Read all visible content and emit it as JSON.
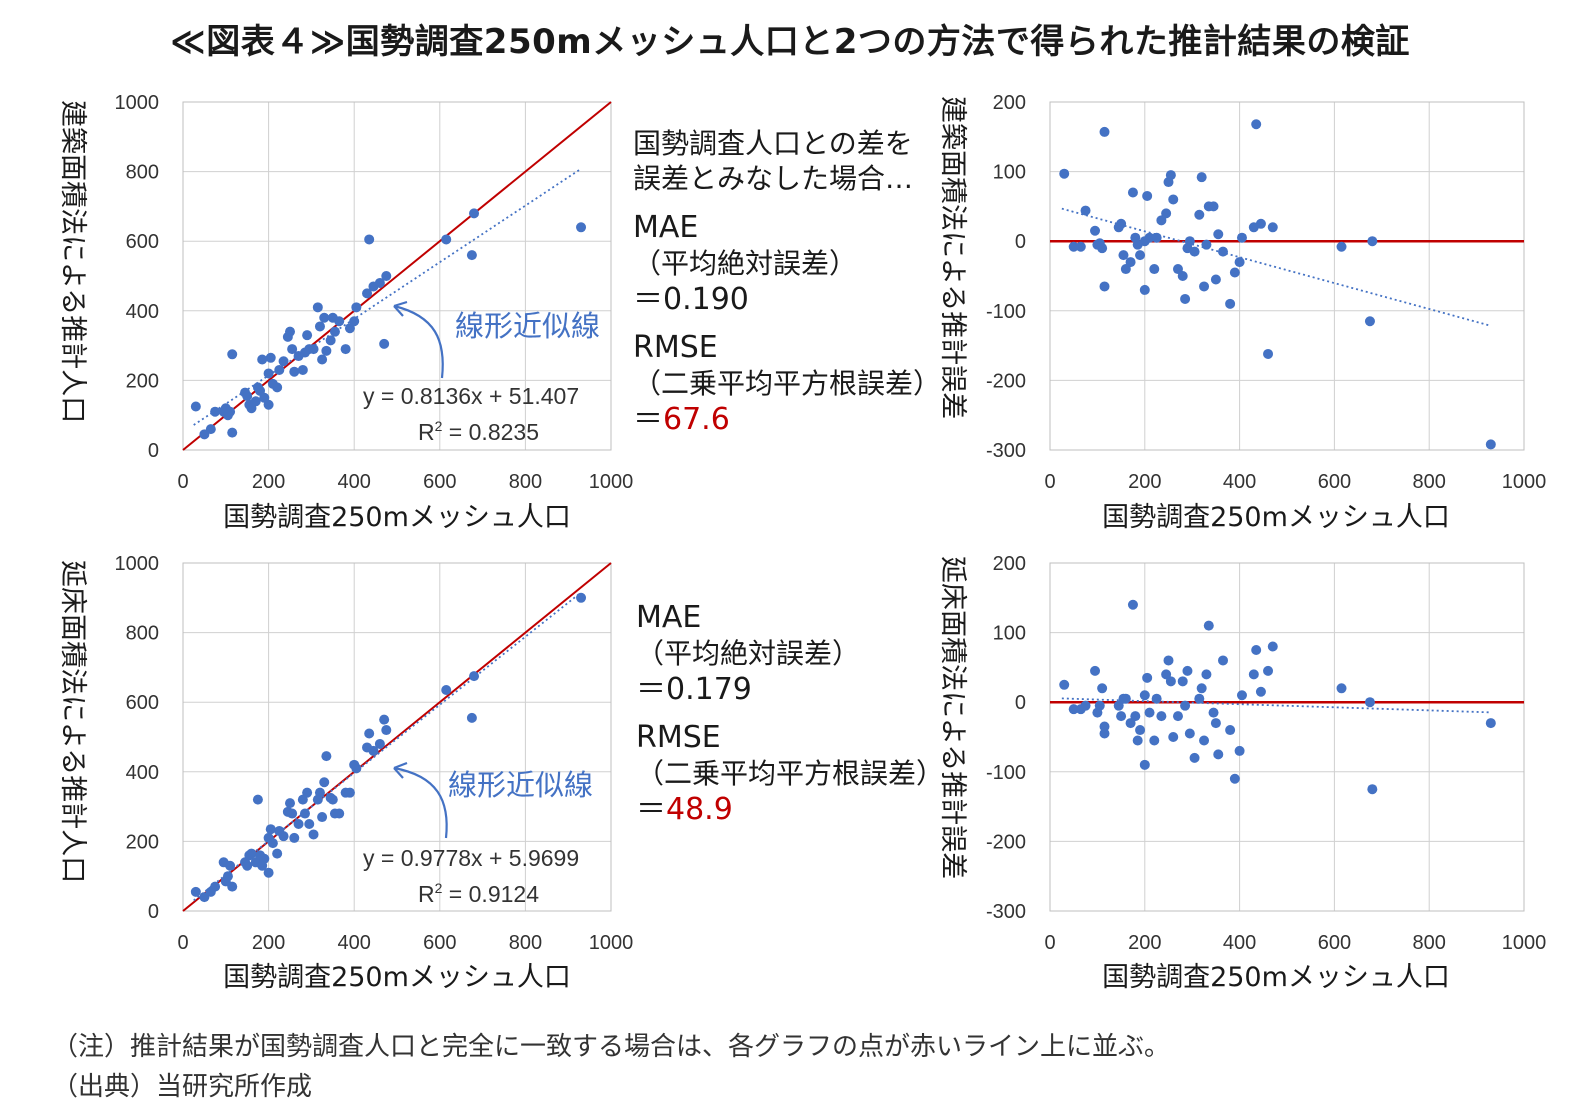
{
  "title": "≪図表４≫国勢調査250mメッシュ人口と2つの方法で得られた推計結果の検証",
  "colors": {
    "point": "#4472c4",
    "reference_line": "#c00000",
    "trendline": "#4472c4",
    "grid": "#d0d0d0",
    "highlight_text": "#c00000"
  },
  "stats": [
    {
      "intro": "国勢調査人口との差を\n誤差とみなした場合…",
      "mae_label": "MAE",
      "mae_desc": "（平均絶対誤差）",
      "mae_value": "＝0.190",
      "rmse_label": "RMSE",
      "rmse_desc": "（二乗平均平方根誤差）",
      "rmse_eq": "＝",
      "rmse_value": "67.6"
    },
    {
      "intro": "",
      "mae_label": "MAE",
      "mae_desc": "（平均絶対誤差）",
      "mae_value": "＝0.179",
      "rmse_label": "RMSE",
      "rmse_desc": "（二乗平均平方根誤差）",
      "rmse_eq": "＝",
      "rmse_value": "48.9"
    }
  ],
  "notes": [
    "（注）推計結果が国勢調査人口と完全に一致する場合は、各グラフの点が赤いライン上に並ぶ。",
    "（出典）当研究所作成"
  ],
  "chart_data": [
    {
      "type": "scatter",
      "xlabel": "国勢調査250mメッシュ人口",
      "ylabel": "建築面積法による推計人口",
      "xlim": [
        0,
        1000
      ],
      "ylim": [
        0,
        1000
      ],
      "xticks": [
        0,
        200,
        400,
        600,
        800,
        1000
      ],
      "yticks": [
        0,
        200,
        400,
        600,
        800,
        1000
      ],
      "grid": true,
      "reference_line": {
        "type": "y=x",
        "color": "#c00000"
      },
      "trendline": {
        "slope": 0.8136,
        "intercept": 51.407,
        "x_range": [
          25,
          930
        ],
        "style": "dotted"
      },
      "callout_label": "線形近似線",
      "equation": "y = 0.8136x + 51.407",
      "r2_prefix": "R",
      "r2_sup": "2",
      "r2_value": " = 0.8235",
      "points": [
        [
          30,
          125
        ],
        [
          50,
          45
        ],
        [
          65,
          60
        ],
        [
          75,
          110
        ],
        [
          95,
          110
        ],
        [
          100,
          120
        ],
        [
          105,
          100
        ],
        [
          110,
          110
        ],
        [
          115,
          50
        ],
        [
          115,
          275
        ],
        [
          145,
          165
        ],
        [
          150,
          155
        ],
        [
          155,
          130
        ],
        [
          160,
          120
        ],
        [
          170,
          140
        ],
        [
          175,
          180
        ],
        [
          180,
          170
        ],
        [
          185,
          260
        ],
        [
          190,
          150
        ],
        [
          200,
          220
        ],
        [
          200,
          130
        ],
        [
          205,
          265
        ],
        [
          210,
          190
        ],
        [
          220,
          180
        ],
        [
          225,
          230
        ],
        [
          235,
          255
        ],
        [
          245,
          325
        ],
        [
          250,
          340
        ],
        [
          255,
          290
        ],
        [
          260,
          225
        ],
        [
          270,
          270
        ],
        [
          280,
          230
        ],
        [
          285,
          280
        ],
        [
          290,
          330
        ],
        [
          295,
          290
        ],
        [
          305,
          290
        ],
        [
          315,
          410
        ],
        [
          320,
          355
        ],
        [
          325,
          260
        ],
        [
          330,
          380
        ],
        [
          335,
          285
        ],
        [
          345,
          315
        ],
        [
          350,
          380
        ],
        [
          355,
          340
        ],
        [
          365,
          370
        ],
        [
          380,
          290
        ],
        [
          390,
          350
        ],
        [
          400,
          370
        ],
        [
          405,
          410
        ],
        [
          430,
          450
        ],
        [
          435,
          605
        ],
        [
          445,
          470
        ],
        [
          460,
          480
        ],
        [
          470,
          305
        ],
        [
          475,
          500
        ],
        [
          615,
          605
        ],
        [
          675,
          560
        ],
        [
          680,
          680
        ],
        [
          930,
          640
        ]
      ]
    },
    {
      "type": "scatter",
      "xlabel": "国勢調査250mメッシュ人口",
      "ylabel": "建築面積法による推計誤差",
      "xlim": [
        0,
        1000
      ],
      "ylim": [
        -300,
        200
      ],
      "xticks": [
        0,
        200,
        400,
        600,
        800,
        1000
      ],
      "yticks": [
        -300,
        -200,
        -100,
        0,
        100,
        200
      ],
      "grid": true,
      "reference_line": {
        "type": "y=0",
        "color": "#c00000"
      },
      "trendline": {
        "slope": -0.186,
        "intercept": 51.4,
        "x_range": [
          25,
          930
        ],
        "style": "dotted"
      },
      "points": [
        [
          30,
          97
        ],
        [
          50,
          -8
        ],
        [
          65,
          -8
        ],
        [
          75,
          44
        ],
        [
          95,
          15
        ],
        [
          100,
          -5
        ],
        [
          105,
          -3
        ],
        [
          110,
          -10
        ],
        [
          115,
          -65
        ],
        [
          115,
          157
        ],
        [
          145,
          20
        ],
        [
          150,
          25
        ],
        [
          155,
          -20
        ],
        [
          160,
          -40
        ],
        [
          170,
          -30
        ],
        [
          175,
          70
        ],
        [
          180,
          5
        ],
        [
          185,
          -5
        ],
        [
          190,
          -20
        ],
        [
          200,
          0
        ],
        [
          200,
          -70
        ],
        [
          205,
          65
        ],
        [
          210,
          5
        ],
        [
          220,
          -40
        ],
        [
          225,
          5
        ],
        [
          235,
          30
        ],
        [
          245,
          40
        ],
        [
          250,
          85
        ],
        [
          255,
          95
        ],
        [
          260,
          60
        ],
        [
          270,
          -40
        ],
        [
          280,
          -50
        ],
        [
          285,
          -83
        ],
        [
          290,
          -10
        ],
        [
          295,
          0
        ],
        [
          305,
          -15
        ],
        [
          315,
          38
        ],
        [
          320,
          92
        ],
        [
          325,
          -65
        ],
        [
          330,
          -5
        ],
        [
          335,
          50
        ],
        [
          345,
          50
        ],
        [
          350,
          -55
        ],
        [
          355,
          10
        ],
        [
          365,
          -15
        ],
        [
          380,
          -90
        ],
        [
          390,
          -45
        ],
        [
          400,
          -30
        ],
        [
          405,
          5
        ],
        [
          430,
          20
        ],
        [
          435,
          168
        ],
        [
          445,
          25
        ],
        [
          460,
          -162
        ],
        [
          470,
          20
        ],
        [
          615,
          -8
        ],
        [
          675,
          -115
        ],
        [
          680,
          0
        ],
        [
          930,
          -292
        ]
      ]
    },
    {
      "type": "scatter",
      "xlabel": "国勢調査250mメッシュ人口",
      "ylabel": "延床面積法による推計人口",
      "xlim": [
        0,
        1000
      ],
      "ylim": [
        0,
        1000
      ],
      "xticks": [
        0,
        200,
        400,
        600,
        800,
        1000
      ],
      "yticks": [
        0,
        200,
        400,
        600,
        800,
        1000
      ],
      "grid": true,
      "reference_line": {
        "type": "y=x",
        "color": "#c00000"
      },
      "trendline": {
        "slope": 0.9778,
        "intercept": 5.9699,
        "x_range": [
          25,
          930
        ],
        "style": "dotted"
      },
      "callout_label": "線形近似線",
      "equation": "y = 0.9778x + 5.9699",
      "r2_prefix": "R",
      "r2_sup": "2",
      "r2_value": " = 0.9124",
      "points": [
        [
          30,
          55
        ],
        [
          50,
          40
        ],
        [
          65,
          55
        ],
        [
          75,
          70
        ],
        [
          95,
          140
        ],
        [
          100,
          85
        ],
        [
          105,
          100
        ],
        [
          110,
          130
        ],
        [
          115,
          70
        ],
        [
          145,
          140
        ],
        [
          150,
          130
        ],
        [
          155,
          160
        ],
        [
          160,
          165
        ],
        [
          170,
          140
        ],
        [
          175,
          320
        ],
        [
          180,
          160
        ],
        [
          185,
          130
        ],
        [
          190,
          150
        ],
        [
          200,
          210
        ],
        [
          200,
          110
        ],
        [
          205,
          235
        ],
        [
          210,
          195
        ],
        [
          220,
          165
        ],
        [
          225,
          230
        ],
        [
          235,
          215
        ],
        [
          245,
          285
        ],
        [
          250,
          310
        ],
        [
          255,
          280
        ],
        [
          260,
          210
        ],
        [
          270,
          250
        ],
        [
          280,
          320
        ],
        [
          285,
          280
        ],
        [
          290,
          340
        ],
        [
          295,
          250
        ],
        [
          305,
          220
        ],
        [
          315,
          320
        ],
        [
          320,
          340
        ],
        [
          325,
          270
        ],
        [
          330,
          370
        ],
        [
          335,
          445
        ],
        [
          345,
          325
        ],
        [
          350,
          320
        ],
        [
          355,
          280
        ],
        [
          365,
          280
        ],
        [
          380,
          340
        ],
        [
          390,
          340
        ],
        [
          400,
          420
        ],
        [
          405,
          410
        ],
        [
          430,
          470
        ],
        [
          435,
          510
        ],
        [
          445,
          460
        ],
        [
          460,
          480
        ],
        [
          470,
          550
        ],
        [
          475,
          520
        ],
        [
          615,
          635
        ],
        [
          675,
          555
        ],
        [
          680,
          675
        ],
        [
          930,
          900
        ]
      ]
    },
    {
      "type": "scatter",
      "xlabel": "国勢調査250mメッシュ人口",
      "ylabel": "延床面積法による推計誤差",
      "xlim": [
        0,
        1000
      ],
      "ylim": [
        -300,
        200
      ],
      "xticks": [
        0,
        200,
        400,
        600,
        800,
        1000
      ],
      "yticks": [
        -300,
        -200,
        -100,
        0,
        100,
        200
      ],
      "grid": true,
      "reference_line": {
        "type": "y=0",
        "color": "#c00000"
      },
      "trendline": {
        "slope": -0.0222,
        "intercept": 6.0,
        "x_range": [
          25,
          930
        ],
        "style": "dotted"
      },
      "points": [
        [
          30,
          25
        ],
        [
          50,
          -10
        ],
        [
          65,
          -10
        ],
        [
          75,
          -5
        ],
        [
          95,
          45
        ],
        [
          100,
          -15
        ],
        [
          105,
          -5
        ],
        [
          110,
          20
        ],
        [
          115,
          -45
        ],
        [
          115,
          -35
        ],
        [
          145,
          -5
        ],
        [
          150,
          -20
        ],
        [
          155,
          5
        ],
        [
          160,
          5
        ],
        [
          170,
          -30
        ],
        [
          175,
          140
        ],
        [
          180,
          -20
        ],
        [
          185,
          -55
        ],
        [
          190,
          -40
        ],
        [
          200,
          10
        ],
        [
          200,
          -90
        ],
        [
          205,
          35
        ],
        [
          210,
          -15
        ],
        [
          220,
          -55
        ],
        [
          225,
          5
        ],
        [
          235,
          -20
        ],
        [
          245,
          40
        ],
        [
          250,
          60
        ],
        [
          255,
          30
        ],
        [
          260,
          -50
        ],
        [
          270,
          -20
        ],
        [
          280,
          30
        ],
        [
          285,
          -5
        ],
        [
          290,
          45
        ],
        [
          295,
          -45
        ],
        [
          305,
          -80
        ],
        [
          315,
          5
        ],
        [
          320,
          20
        ],
        [
          325,
          -55
        ],
        [
          330,
          40
        ],
        [
          335,
          110
        ],
        [
          345,
          -15
        ],
        [
          350,
          -30
        ],
        [
          355,
          -75
        ],
        [
          365,
          60
        ],
        [
          380,
          -40
        ],
        [
          390,
          -110
        ],
        [
          400,
          -70
        ],
        [
          405,
          10
        ],
        [
          430,
          40
        ],
        [
          435,
          75
        ],
        [
          445,
          15
        ],
        [
          460,
          45
        ],
        [
          470,
          80
        ],
        [
          615,
          20
        ],
        [
          675,
          0
        ],
        [
          680,
          -125
        ],
        [
          930,
          -30
        ]
      ]
    }
  ]
}
